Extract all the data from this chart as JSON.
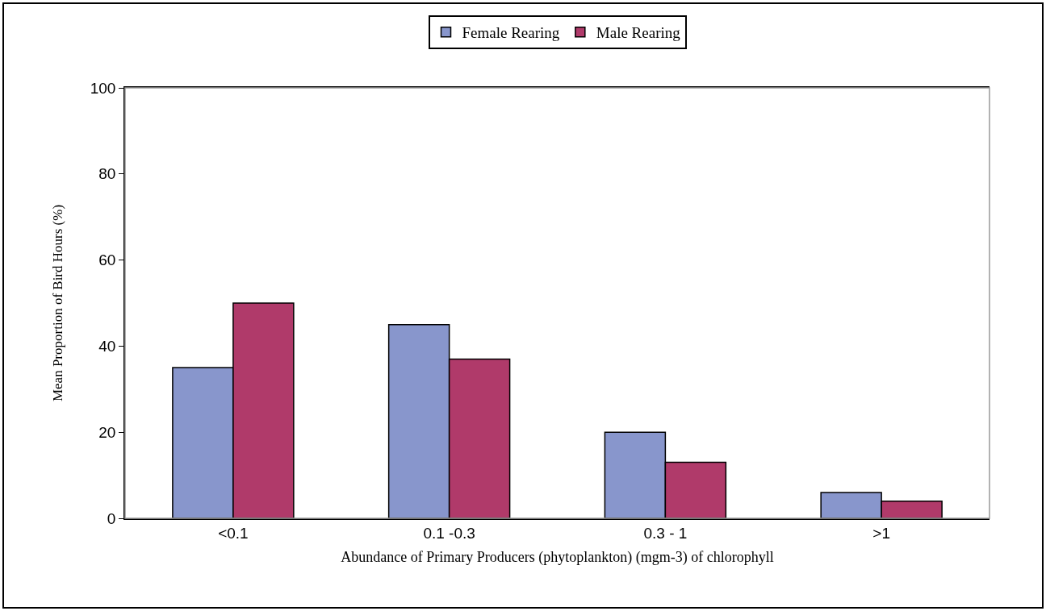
{
  "chart_data": {
    "type": "bar",
    "xlabel": "Abundance of Primary Producers (phytoplankton) (mgm-3) of chlorophyll",
    "ylabel": "Mean Proportion of Bird Hours (%)",
    "categories": [
      "<0.1",
      "0.1 -0.3",
      "0.3 - 1",
      ">1"
    ],
    "series": [
      {
        "name": "Female Rearing",
        "color": "#8896cc",
        "values": [
          35,
          45,
          20,
          6
        ]
      },
      {
        "name": "Male Rearing",
        "color": "#b03a6a",
        "values": [
          50,
          37,
          13,
          4
        ]
      }
    ],
    "ylim": [
      0,
      100
    ],
    "yticks": [
      0,
      20,
      40,
      60,
      80,
      100
    ],
    "grid": false,
    "legend": "top"
  }
}
